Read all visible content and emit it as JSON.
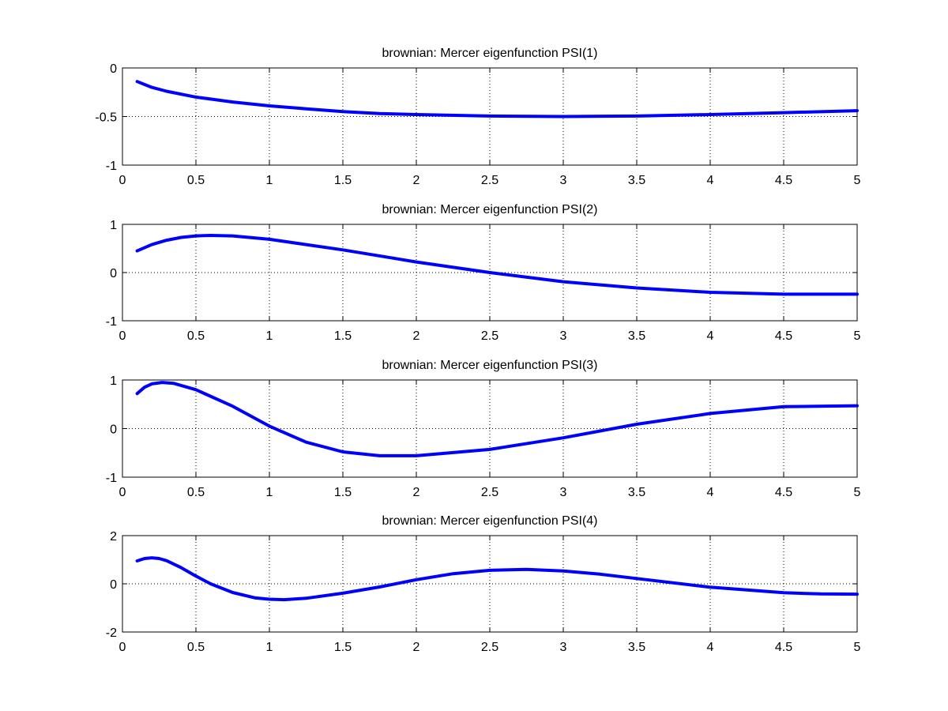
{
  "chart_data": [
    {
      "type": "line",
      "title": "brownian: Mercer eigenfunction PSI(1)",
      "xlim": [
        0,
        5
      ],
      "ylim": [
        -1,
        0
      ],
      "x_ticks": [
        0,
        0.5,
        1,
        1.5,
        2,
        2.5,
        3,
        3.5,
        4,
        4.5,
        5
      ],
      "x_tick_labels": [
        "0",
        "0.5",
        "1",
        "1.5",
        "2",
        "2.5",
        "3",
        "3.5",
        "4",
        "4.5",
        "5"
      ],
      "y_ticks": [
        -1,
        -0.5,
        0
      ],
      "y_tick_labels": [
        "-1",
        "-0.5",
        "0"
      ],
      "grid": true,
      "series": [
        {
          "color": "#0000ff",
          "x": [
            0.1,
            0.2,
            0.3,
            0.5,
            0.75,
            1.0,
            1.25,
            1.5,
            1.75,
            2.0,
            2.5,
            3.0,
            3.5,
            4.0,
            4.5,
            5.0
          ],
          "y": [
            -0.14,
            -0.2,
            -0.24,
            -0.3,
            -0.35,
            -0.39,
            -0.42,
            -0.45,
            -0.47,
            -0.48,
            -0.495,
            -0.5,
            -0.495,
            -0.48,
            -0.46,
            -0.44
          ]
        }
      ]
    },
    {
      "type": "line",
      "title": "brownian: Mercer eigenfunction PSI(2)",
      "xlim": [
        0,
        5
      ],
      "ylim": [
        -1,
        1
      ],
      "x_ticks": [
        0,
        0.5,
        1,
        1.5,
        2,
        2.5,
        3,
        3.5,
        4,
        4.5,
        5
      ],
      "x_tick_labels": [
        "0",
        "0.5",
        "1",
        "1.5",
        "2",
        "2.5",
        "3",
        "3.5",
        "4",
        "4.5",
        "5"
      ],
      "y_ticks": [
        -1,
        0,
        1
      ],
      "y_tick_labels": [
        "-1",
        "0",
        "1"
      ],
      "grid": true,
      "series": [
        {
          "color": "#0000ff",
          "x": [
            0.1,
            0.2,
            0.3,
            0.4,
            0.5,
            0.6,
            0.75,
            1.0,
            1.25,
            1.5,
            2.0,
            2.5,
            3.0,
            3.5,
            4.0,
            4.5,
            5.0
          ],
          "y": [
            0.45,
            0.58,
            0.67,
            0.73,
            0.76,
            0.77,
            0.76,
            0.69,
            0.58,
            0.47,
            0.22,
            0.0,
            -0.19,
            -0.32,
            -0.41,
            -0.45,
            -0.45
          ]
        }
      ]
    },
    {
      "type": "line",
      "title": "brownian: Mercer eigenfunction PSI(3)",
      "xlim": [
        0,
        5
      ],
      "ylim": [
        -1,
        1
      ],
      "x_ticks": [
        0,
        0.5,
        1,
        1.5,
        2,
        2.5,
        3,
        3.5,
        4,
        4.5,
        5
      ],
      "x_tick_labels": [
        "0",
        "0.5",
        "1",
        "1.5",
        "2",
        "2.5",
        "3",
        "3.5",
        "4",
        "4.5",
        "5"
      ],
      "y_ticks": [
        -1,
        0,
        1
      ],
      "y_tick_labels": [
        "-1",
        "0",
        "1"
      ],
      "grid": true,
      "series": [
        {
          "color": "#0000ff",
          "x": [
            0.1,
            0.15,
            0.2,
            0.27,
            0.35,
            0.5,
            0.75,
            1.0,
            1.25,
            1.5,
            1.75,
            2.0,
            2.5,
            3.0,
            3.5,
            4.0,
            4.5,
            5.0
          ],
          "y": [
            0.72,
            0.85,
            0.92,
            0.95,
            0.93,
            0.8,
            0.46,
            0.05,
            -0.28,
            -0.48,
            -0.56,
            -0.56,
            -0.43,
            -0.19,
            0.09,
            0.31,
            0.45,
            0.47
          ]
        }
      ]
    },
    {
      "type": "line",
      "title": "brownian: Mercer eigenfunction PSI(4)",
      "xlim": [
        0,
        5
      ],
      "ylim": [
        -2,
        2
      ],
      "x_ticks": [
        0,
        0.5,
        1,
        1.5,
        2,
        2.5,
        3,
        3.5,
        4,
        4.5,
        5
      ],
      "x_tick_labels": [
        "0",
        "0.5",
        "1",
        "1.5",
        "2",
        "2.5",
        "3",
        "3.5",
        "4",
        "4.5",
        "5"
      ],
      "y_ticks": [
        -2,
        0,
        2
      ],
      "y_tick_labels": [
        "-2",
        "0",
        "2"
      ],
      "grid": true,
      "series": [
        {
          "color": "#0000ff",
          "x": [
            0.1,
            0.15,
            0.2,
            0.25,
            0.3,
            0.4,
            0.5,
            0.6,
            0.75,
            0.9,
            1.0,
            1.1,
            1.25,
            1.5,
            1.75,
            2.0,
            2.25,
            2.5,
            2.75,
            3.0,
            3.25,
            3.5,
            4.0,
            4.5,
            4.75,
            5.0
          ],
          "y": [
            0.95,
            1.05,
            1.08,
            1.05,
            0.96,
            0.67,
            0.32,
            0.0,
            -0.36,
            -0.58,
            -0.64,
            -0.66,
            -0.6,
            -0.39,
            -0.13,
            0.17,
            0.42,
            0.56,
            0.6,
            0.53,
            0.4,
            0.22,
            -0.14,
            -0.37,
            -0.42,
            -0.43
          ]
        }
      ]
    }
  ]
}
